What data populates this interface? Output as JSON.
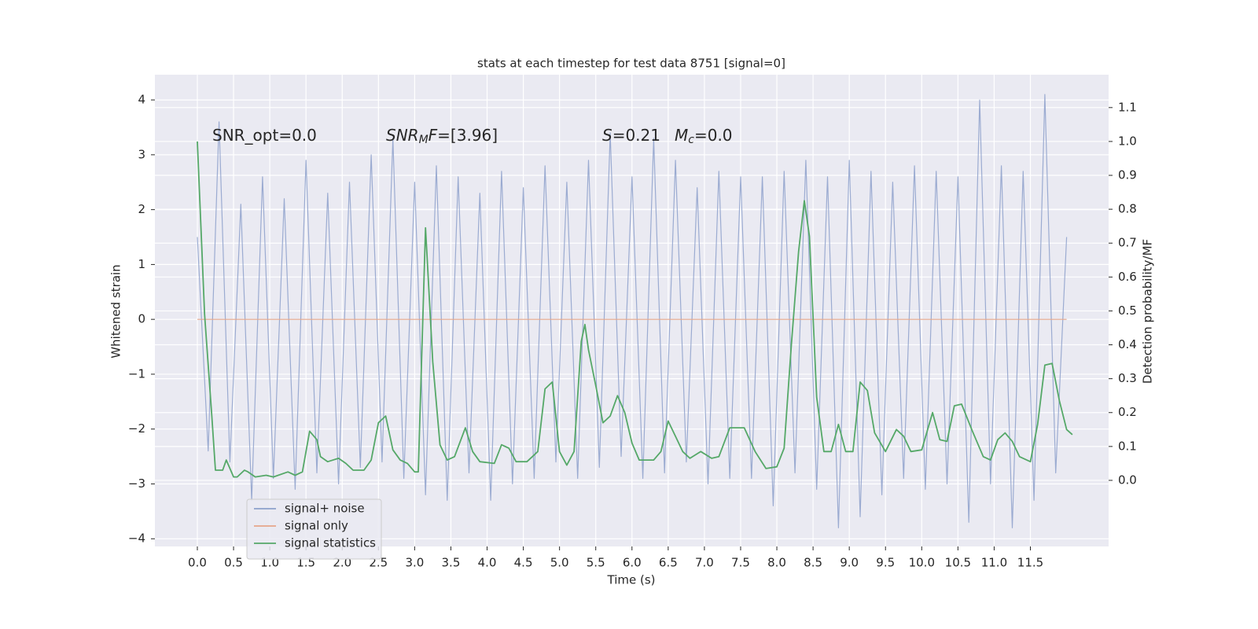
{
  "chart_data": {
    "type": "line",
    "title": "stats at each timestep for test data 8751 [signal=0]",
    "xlabel": "Time (s)",
    "ylabel": "Whitened strain",
    "y2label": "Detection probability/MF",
    "xlim": [
      -0.586,
      12.58
    ],
    "ylim": [
      -4.14,
      4.46
    ],
    "y2lim": [
      -0.195,
      1.197
    ],
    "grid": true,
    "legend": "lower left",
    "xticks": [
      {
        "value": 0,
        "label": "0.0"
      },
      {
        "value": 0.5,
        "label": "0.5"
      },
      {
        "value": 1,
        "label": "1.0"
      },
      {
        "value": 1.5,
        "label": "1.5"
      },
      {
        "value": 2,
        "label": "2.0"
      },
      {
        "value": 2.5,
        "label": "2.5"
      },
      {
        "value": 3,
        "label": "3.0"
      },
      {
        "value": 3.5,
        "label": "3.5"
      },
      {
        "value": 4,
        "label": "4.0"
      },
      {
        "value": 4.5,
        "label": "4.5"
      },
      {
        "value": 5,
        "label": "5.0"
      },
      {
        "value": 5.5,
        "label": "5.5"
      },
      {
        "value": 6,
        "label": "6.0"
      },
      {
        "value": 6.5,
        "label": "6.5"
      },
      {
        "value": 7,
        "label": "7.0"
      },
      {
        "value": 7.5,
        "label": "7.5"
      },
      {
        "value": 8,
        "label": "8.0"
      },
      {
        "value": 8.5,
        "label": "8.5"
      },
      {
        "value": 9,
        "label": "9.0"
      },
      {
        "value": 9.5,
        "label": "9.5"
      },
      {
        "value": 10,
        "label": "10.0"
      },
      {
        "value": 10.5,
        "label": "10.5"
      },
      {
        "value": 11,
        "label": "11.0"
      },
      {
        "value": 11.5,
        "label": "11.5"
      }
    ],
    "yticks": [
      {
        "value": -4,
        "label": "−4"
      },
      {
        "value": -3,
        "label": "−3"
      },
      {
        "value": -2,
        "label": "−2"
      },
      {
        "value": -1,
        "label": "−1"
      },
      0,
      1,
      2,
      3,
      4
    ],
    "y2ticks": [
      {
        "value": 0,
        "label": "0.0"
      },
      {
        "value": 0.1,
        "label": "0.1"
      },
      {
        "value": 0.2,
        "label": "0.2"
      },
      {
        "value": 0.3,
        "label": "0.3"
      },
      {
        "value": 0.4,
        "label": "0.4"
      },
      {
        "value": 0.5,
        "label": "0.5"
      },
      {
        "value": 0.6,
        "label": "0.6"
      },
      {
        "value": 0.7,
        "label": "0.7"
      },
      {
        "value": 0.8,
        "label": "0.8"
      },
      {
        "value": 0.9,
        "label": "0.9"
      },
      {
        "value": 1,
        "label": "1.0"
      },
      {
        "value": 1.1,
        "label": "1.1"
      }
    ],
    "annotations": [
      [
        {
          "text": "SNR_opt=0.0"
        }
      ],
      [
        {
          "text": "SNR",
          "italic": true
        },
        {
          "text": "M",
          "italic": true,
          "sub": true
        },
        {
          "text": "F",
          "italic": true
        },
        {
          "text": "=[3.96]"
        }
      ],
      [
        {
          "text": "S",
          "italic": true
        },
        {
          "text": "=0.21"
        }
      ],
      [
        {
          "text": "M",
          "italic": true
        },
        {
          "text": "c",
          "italic": true,
          "sub": true
        },
        {
          "text": "=0.0"
        }
      ]
    ],
    "series": [
      {
        "name": "signal+ noise",
        "color": "#8da0cb",
        "opacity": 0.85,
        "x": [
          0.0,
          0.15,
          0.3,
          0.45,
          0.6,
          0.75,
          0.9,
          1.05,
          1.2,
          1.35,
          1.5,
          1.65,
          1.8,
          1.95,
          2.1,
          2.25,
          2.4,
          2.55,
          2.7,
          2.85,
          3.0,
          3.15,
          3.3,
          3.45,
          3.6,
          3.75,
          3.9,
          4.05,
          4.2,
          4.35,
          4.5,
          4.65,
          4.8,
          4.95,
          5.1,
          5.25,
          5.4,
          5.55,
          5.7,
          5.85,
          6.0,
          6.15,
          6.3,
          6.45,
          6.6,
          6.75,
          6.9,
          7.05,
          7.2,
          7.35,
          7.5,
          7.65,
          7.8,
          7.95,
          8.1,
          8.25,
          8.4,
          8.55,
          8.7,
          8.85,
          9.0,
          9.15,
          9.3,
          9.45,
          9.6,
          9.75,
          9.9,
          10.05,
          10.2,
          10.35,
          10.5,
          10.65,
          10.8,
          10.95,
          11.1,
          11.25,
          11.4,
          11.55,
          11.7,
          11.85,
          12.0
        ],
        "values": [
          1.5,
          -2.4,
          3.6,
          -2.6,
          2.1,
          -3.3,
          2.6,
          -2.9,
          2.2,
          -3.1,
          2.9,
          -2.8,
          2.3,
          -3.0,
          2.5,
          -2.7,
          3.0,
          -2.6,
          3.3,
          -2.9,
          2.5,
          -3.2,
          2.8,
          -3.3,
          2.6,
          -2.8,
          2.3,
          -3.3,
          2.7,
          -3.0,
          2.4,
          -2.9,
          2.8,
          -2.6,
          2.5,
          -2.9,
          2.9,
          -2.7,
          3.4,
          -2.5,
          2.6,
          -2.9,
          3.3,
          -2.8,
          2.9,
          -2.6,
          2.4,
          -3.0,
          2.7,
          -2.9,
          2.6,
          -2.9,
          2.6,
          -3.4,
          2.7,
          -2.8,
          2.9,
          -3.1,
          2.6,
          -3.8,
          2.9,
          -3.6,
          2.7,
          -3.2,
          2.5,
          -2.9,
          2.8,
          -3.1,
          2.7,
          -3.0,
          2.6,
          -3.7,
          4.0,
          -3.0,
          2.8,
          -3.8,
          2.7,
          -3.3,
          4.1,
          -2.8,
          1.5
        ]
      },
      {
        "name": "signal only",
        "color": "#e5a68a",
        "opacity": 1,
        "x": [
          0,
          12.0
        ],
        "values": [
          0,
          0
        ]
      },
      {
        "name": "signal statistics",
        "color": "#55a868",
        "opacity": 1,
        "axis": "y2",
        "x": [
          0,
          0.1,
          0.2,
          0.25,
          0.35,
          0.4,
          0.5,
          0.55,
          0.65,
          0.7,
          0.8,
          0.95,
          1.05,
          1.25,
          1.35,
          1.45,
          1.55,
          1.65,
          1.7,
          1.8,
          1.95,
          2.05,
          2.15,
          2.3,
          2.4,
          2.5,
          2.6,
          2.7,
          2.8,
          2.9,
          3.0,
          3.05,
          3.15,
          3.25,
          3.35,
          3.45,
          3.55,
          3.7,
          3.8,
          3.9,
          4.1,
          4.2,
          4.3,
          4.4,
          4.55,
          4.7,
          4.8,
          4.9,
          5.0,
          5.1,
          5.2,
          5.3,
          5.35,
          5.4,
          5.5,
          5.6,
          5.7,
          5.8,
          5.9,
          6.0,
          6.1,
          6.3,
          6.4,
          6.5,
          6.6,
          6.7,
          6.8,
          6.95,
          7.1,
          7.2,
          7.35,
          7.55,
          7.7,
          7.85,
          8.0,
          8.1,
          8.2,
          8.3,
          8.38,
          8.45,
          8.55,
          8.65,
          8.75,
          8.85,
          8.95,
          9.05,
          9.15,
          9.25,
          9.35,
          9.5,
          9.65,
          9.75,
          9.85,
          10.0,
          10.15,
          10.25,
          10.35,
          10.45,
          10.55,
          10.7,
          10.85,
          10.95,
          11.05,
          11.15,
          11.25,
          11.35,
          11.5,
          11.6,
          11.7,
          11.8,
          11.9,
          12.0,
          12.08
        ],
        "values": [
          1.0,
          0.49,
          0.19,
          0.03,
          0.03,
          0.06,
          0.01,
          0.01,
          0.03,
          0.025,
          0.01,
          0.015,
          0.01,
          0.025,
          0.015,
          0.025,
          0.145,
          0.12,
          0.07,
          0.055,
          0.065,
          0.05,
          0.03,
          0.03,
          0.06,
          0.17,
          0.19,
          0.09,
          0.06,
          0.05,
          0.025,
          0.025,
          0.745,
          0.35,
          0.105,
          0.06,
          0.07,
          0.155,
          0.085,
          0.055,
          0.05,
          0.105,
          0.095,
          0.055,
          0.055,
          0.085,
          0.27,
          0.29,
          0.085,
          0.045,
          0.085,
          0.41,
          0.46,
          0.385,
          0.28,
          0.17,
          0.19,
          0.25,
          0.2,
          0.11,
          0.06,
          0.06,
          0.085,
          0.175,
          0.13,
          0.085,
          0.065,
          0.085,
          0.065,
          0.07,
          0.155,
          0.155,
          0.085,
          0.035,
          0.04,
          0.095,
          0.4,
          0.675,
          0.825,
          0.72,
          0.245,
          0.085,
          0.085,
          0.165,
          0.085,
          0.085,
          0.29,
          0.265,
          0.14,
          0.085,
          0.15,
          0.13,
          0.085,
          0.09,
          0.2,
          0.12,
          0.115,
          0.22,
          0.225,
          0.145,
          0.07,
          0.06,
          0.12,
          0.14,
          0.115,
          0.07,
          0.055,
          0.165,
          0.34,
          0.345,
          0.235,
          0.15,
          0.135
        ]
      }
    ]
  }
}
